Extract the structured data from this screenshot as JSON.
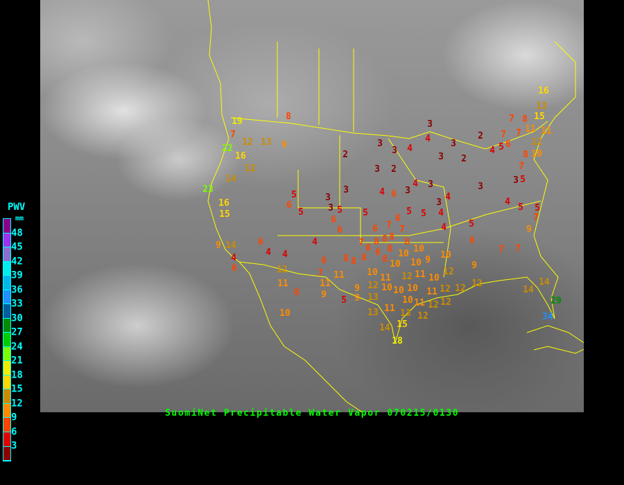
{
  "title": "SuomiNet Precipitable Water Vapor 070215/0130",
  "legend": {
    "title": "PWV",
    "unit": "mm",
    "ticks": [
      "48",
      "45",
      "42",
      "39",
      "36",
      "33",
      "30",
      "27",
      "24",
      "21",
      "18",
      "15",
      "12",
      "9",
      "6",
      "3"
    ],
    "colors_top_to_bottom": [
      "#8b008b",
      "#9a32f0",
      "#8870d0",
      "#00eeee",
      "#00b8e8",
      "#1e90ff",
      "#005f9f",
      "#008b00",
      "#00cd00",
      "#7cfc00",
      "#eeee00",
      "#ffd700",
      "#cd8c00",
      "#ff8c00",
      "#ff4500",
      "#dd0000",
      "#8b0000"
    ]
  },
  "map": {
    "background": "GOES water vapor / IR imagery (grayscale)",
    "border_color": "#ffff00"
  },
  "stations": [
    19,
    7,
    22,
    12,
    13,
    9,
    8,
    16,
    2,
    12,
    14,
    23,
    3,
    5,
    3,
    3,
    6,
    5,
    5,
    6,
    5,
    16,
    15,
    6,
    7,
    4,
    6,
    9,
    14,
    4,
    4,
    4,
    6,
    6,
    8,
    8,
    8,
    7,
    12,
    11,
    11,
    11,
    9,
    9,
    8,
    5,
    10,
    3,
    7,
    8,
    15,
    11,
    2,
    7,
    7,
    12,
    3,
    4,
    3,
    3,
    4,
    5,
    6,
    4,
    11,
    10,
    3,
    2,
    8,
    3,
    2,
    7,
    3,
    5,
    3,
    4,
    3,
    3,
    4,
    6,
    4,
    3,
    4,
    5,
    5,
    4,
    5,
    5,
    7,
    6,
    7,
    7,
    6,
    4,
    5,
    9,
    8,
    8,
    8,
    8,
    8,
    6,
    8,
    10,
    10,
    10,
    10,
    10,
    12,
    9,
    8,
    11,
    6,
    7,
    7,
    10,
    9,
    12,
    12,
    10,
    10,
    11,
    10,
    13,
    9,
    10,
    11,
    12,
    12,
    12,
    12,
    12,
    14,
    14,
    10,
    11,
    12,
    11,
    13,
    13,
    15,
    14,
    18,
    29,
    34,
    16,
    13
  ]
}
